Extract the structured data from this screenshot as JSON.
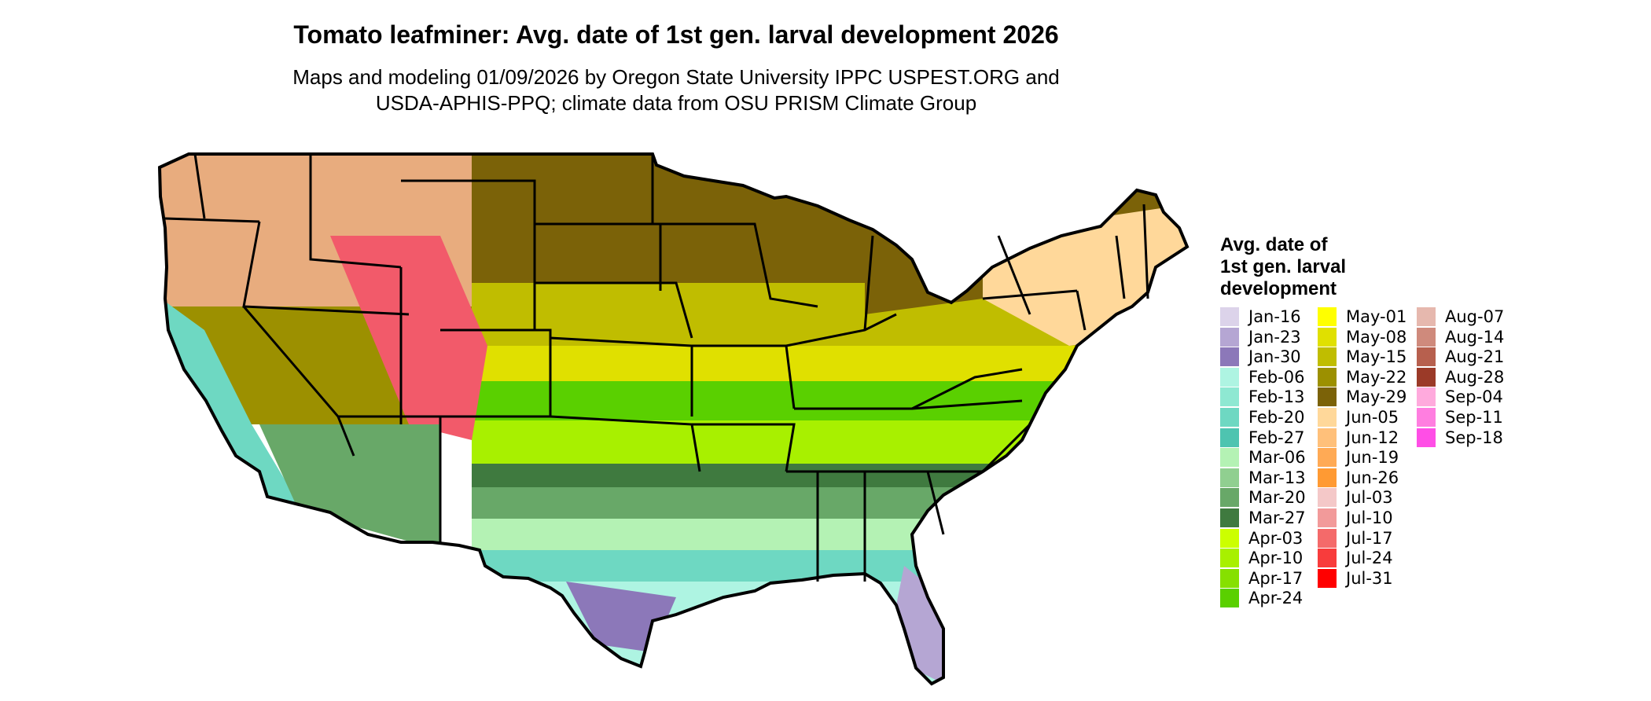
{
  "title": "Tomato leafminer: Avg. date of 1st gen. larval development 2026",
  "subtitle_line1": "Maps and modeling 01/09/2026 by Oregon State University IPPC USPEST.ORG and",
  "subtitle_line2": "USDA-APHIS-PPQ; climate data from OSU PRISM Climate Group",
  "legend": {
    "title_line1": "Avg. date of",
    "title_line2": "1st gen. larval",
    "title_line3": "development",
    "items": [
      {
        "label": "Jan-16",
        "color": "#dcd3ea"
      },
      {
        "label": "Jan-23",
        "color": "#b5a6d3"
      },
      {
        "label": "Jan-30",
        "color": "#8c78b9"
      },
      {
        "label": "Feb-06",
        "color": "#aef4e2"
      },
      {
        "label": "Feb-13",
        "color": "#8ee8d2"
      },
      {
        "label": "Feb-20",
        "color": "#6ed8c2"
      },
      {
        "label": "Feb-27",
        "color": "#4ec4b0"
      },
      {
        "label": "Mar-06",
        "color": "#b4f2b4"
      },
      {
        "label": "Mar-13",
        "color": "#90cf90"
      },
      {
        "label": "Mar-20",
        "color": "#68a868"
      },
      {
        "label": "Mar-27",
        "color": "#3f7a3f"
      },
      {
        "label": "Apr-03",
        "color": "#ccff00"
      },
      {
        "label": "Apr-10",
        "color": "#a8f000"
      },
      {
        "label": "Apr-17",
        "color": "#86e000"
      },
      {
        "label": "Apr-24",
        "color": "#5ad000"
      },
      {
        "label": "May-01",
        "color": "#ffff00"
      },
      {
        "label": "May-08",
        "color": "#e0e000"
      },
      {
        "label": "May-15",
        "color": "#c0bd00"
      },
      {
        "label": "May-22",
        "color": "#9c9000"
      },
      {
        "label": "May-29",
        "color": "#7b6208"
      },
      {
        "label": "Jun-05",
        "color": "#ffd89a"
      },
      {
        "label": "Jun-12",
        "color": "#ffc07a"
      },
      {
        "label": "Jun-19",
        "color": "#ffaa55"
      },
      {
        "label": "Jun-26",
        "color": "#ff9a33"
      },
      {
        "label": "Jul-03",
        "color": "#f4c8c8"
      },
      {
        "label": "Jul-10",
        "color": "#f29a9a"
      },
      {
        "label": "Jul-17",
        "color": "#f46a6a"
      },
      {
        "label": "Jul-24",
        "color": "#f83c3c"
      },
      {
        "label": "Jul-31",
        "color": "#ff0000"
      },
      {
        "label": "Aug-07",
        "color": "#e6b8ae"
      },
      {
        "label": "Aug-14",
        "color": "#cf8a7c"
      },
      {
        "label": "Aug-21",
        "color": "#b7604e"
      },
      {
        "label": "Aug-28",
        "color": "#9b3a28"
      },
      {
        "label": "Sep-04",
        "color": "#ffaadd"
      },
      {
        "label": "Sep-11",
        "color": "#ff7ee0"
      },
      {
        "label": "Sep-18",
        "color": "#ff4ee6"
      }
    ]
  },
  "map_colors": {
    "outline": "#000000",
    "northwest": "#e8ac7e",
    "mountain_hot": "#f25a6a",
    "plains_north": "#7b6208",
    "plains_mid": "#9c9000",
    "corn_belt": "#c0bd00",
    "band_may": "#e0e000",
    "band_apr": "#5ad000",
    "band_apr_light": "#a8f000",
    "band_mar27": "#3f7a3f",
    "band_mar20": "#68a868",
    "band_mar6": "#b4f2b4",
    "band_feb": "#6ed8c2",
    "gulf": "#aef4e2",
    "texas_south": "#8c78b9",
    "florida": "#b5a6d3",
    "northeast": "#ffd89a",
    "california_coast": "#6ed8c2"
  }
}
